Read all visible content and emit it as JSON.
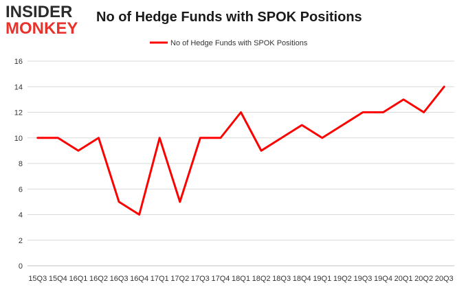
{
  "logo": {
    "line1": "INSIDER",
    "line2": "MONKEY"
  },
  "chart_data": {
    "type": "line",
    "title": "No of Hedge Funds with SPOK Positions",
    "xlabel": "",
    "ylabel": "",
    "categories": [
      "15Q3",
      "15Q4",
      "16Q1",
      "16Q2",
      "16Q3",
      "16Q4",
      "17Q1",
      "17Q2",
      "17Q3",
      "17Q4",
      "18Q1",
      "18Q2",
      "18Q3",
      "18Q4",
      "19Q1",
      "19Q2",
      "19Q3",
      "19Q4",
      "20Q1",
      "20Q2",
      "20Q3"
    ],
    "series": [
      {
        "name": "No of Hedge Funds with SPOK Positions",
        "values": [
          10,
          10,
          9,
          10,
          5,
          4,
          10,
          5,
          10,
          10,
          12,
          9,
          10,
          11,
          10,
          11,
          12,
          12,
          13,
          12,
          14
        ],
        "color": "#ff0000"
      }
    ],
    "ylim": [
      0,
      16
    ],
    "yticks": [
      0,
      2,
      4,
      6,
      8,
      10,
      12,
      14,
      16
    ],
    "grid": true,
    "legend": "top-center"
  }
}
